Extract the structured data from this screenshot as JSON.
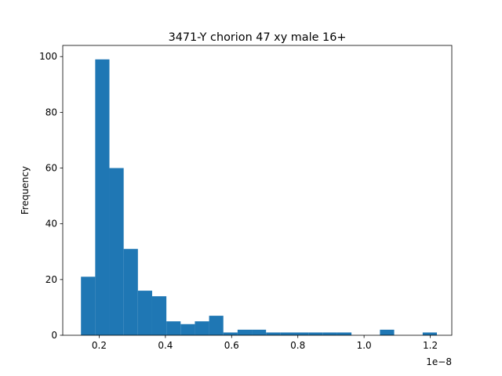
{
  "chart_data": {
    "type": "bar",
    "title": "3471-Y chorion 47 xy male 16+",
    "xlabel": "",
    "ylabel": "Frequency",
    "x_offset_label": "1e−8",
    "x_scale": 1e-08,
    "xlim": [
      0.09,
      1.265
    ],
    "ylim": [
      0,
      104
    ],
    "bin_edges": [
      0.145,
      0.188,
      0.231,
      0.274,
      0.317,
      0.36,
      0.403,
      0.446,
      0.489,
      0.532,
      0.575,
      0.618,
      0.661,
      0.704,
      0.747,
      0.79,
      0.833,
      0.876,
      0.919,
      0.962,
      1.005,
      1.048,
      1.091,
      1.134,
      1.177,
      1.22
    ],
    "values": [
      21,
      99,
      60,
      31,
      16,
      14,
      5,
      4,
      5,
      7,
      1,
      2,
      2,
      1,
      1,
      1,
      1,
      1,
      1,
      0,
      0,
      2,
      0,
      0,
      1
    ],
    "x_ticks": [
      {
        "value": 0.2,
        "label": "0.2"
      },
      {
        "value": 0.4,
        "label": "0.4"
      },
      {
        "value": 0.6,
        "label": "0.6"
      },
      {
        "value": 0.8,
        "label": "0.8"
      },
      {
        "value": 1.0,
        "label": "1.0"
      },
      {
        "value": 1.2,
        "label": "1.2"
      }
    ],
    "y_ticks": [
      {
        "value": 0,
        "label": "0"
      },
      {
        "value": 20,
        "label": "20"
      },
      {
        "value": 40,
        "label": "40"
      },
      {
        "value": 60,
        "label": "60"
      },
      {
        "value": 80,
        "label": "80"
      },
      {
        "value": 100,
        "label": "100"
      }
    ],
    "bar_color": "#1f77b4",
    "grid": false,
    "legend": "none"
  }
}
